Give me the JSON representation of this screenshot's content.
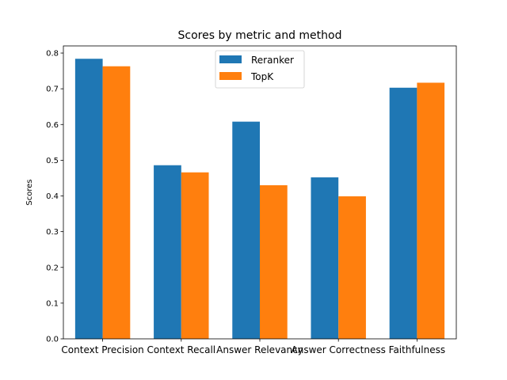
{
  "chart_data": {
    "type": "bar",
    "title": "Scores by metric and method",
    "xlabel": "",
    "ylabel": "Scores",
    "categories": [
      "Context Precision",
      "Context Recall",
      "Answer Relevancy",
      "Answer Correctness",
      "Faithfulness"
    ],
    "series": [
      {
        "name": "Reranker",
        "color": "#1f77b4",
        "values": [
          0.784,
          0.486,
          0.608,
          0.452,
          0.703
        ]
      },
      {
        "name": "TopK",
        "color": "#ff7f0e",
        "values": [
          0.763,
          0.466,
          0.43,
          0.399,
          0.717
        ]
      }
    ],
    "ylim": [
      0,
      0.82
    ],
    "yticks": [
      "0.0",
      "0.1",
      "0.2",
      "0.3",
      "0.4",
      "0.5",
      "0.6",
      "0.7",
      "0.8"
    ],
    "grid": false,
    "legend_position": "top-center"
  }
}
